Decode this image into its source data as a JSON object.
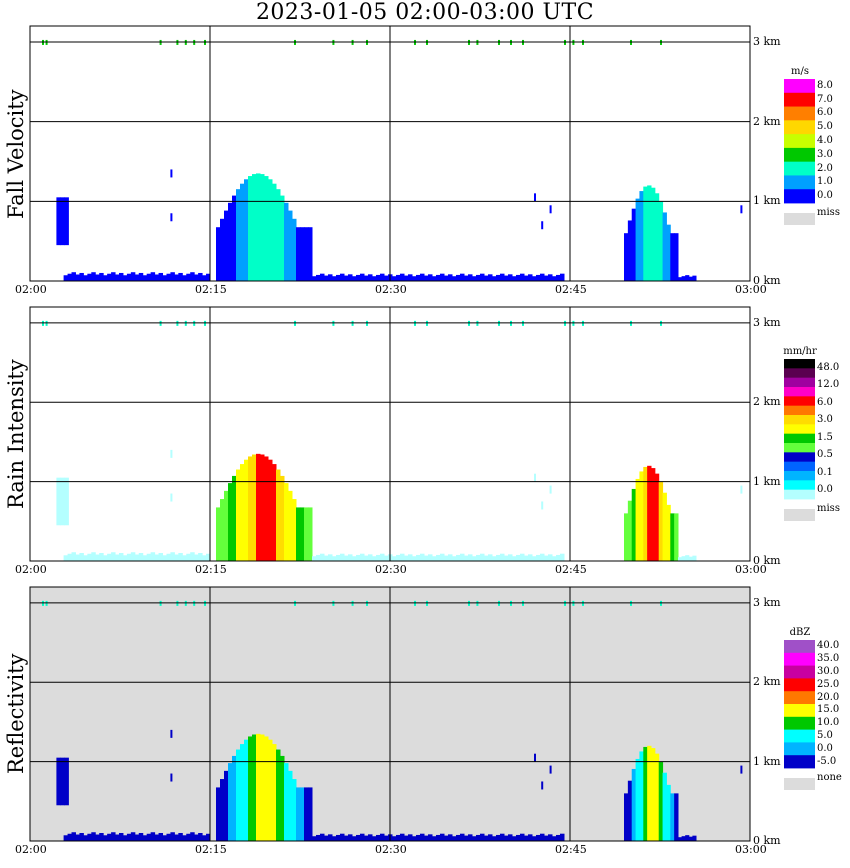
{
  "figure": {
    "title": "2023-01-05   02:00-03:00 UTC"
  },
  "chart_data": [
    {
      "type": "heatmap",
      "title": "Fall Velocity",
      "ylabel": "Fall Velocity",
      "x_ticks": [
        "02:00",
        "02:15",
        "02:30",
        "02:45",
        "03:00"
      ],
      "y_ticks": [
        "0 km",
        "1 km",
        "2 km",
        "3 km"
      ],
      "ylim_km": [
        0,
        3.2
      ],
      "xlim_min": [
        0,
        60
      ],
      "grid": true,
      "background": "#ffffff",
      "colorbar": {
        "unit": "m/s",
        "labels": [
          "8.0",
          "7.0",
          "6.0",
          "5.0",
          "4.0",
          "3.0",
          "2.0",
          "1.0",
          "0.0"
        ],
        "colors": [
          "#ff00ff",
          "#ff0000",
          "#ff7f00",
          "#ffd700",
          "#c8ff00",
          "#00c800",
          "#00ffc8",
          "#00a0ff",
          "#0000ff"
        ],
        "missing_label": "miss",
        "missing_color": "#dcdcdc"
      }
    },
    {
      "type": "heatmap",
      "title": "Rain Intensity",
      "ylabel": "Rain Intensity",
      "x_ticks": [
        "02:00",
        "02:15",
        "02:30",
        "02:45",
        "03:00"
      ],
      "y_ticks": [
        "0 km",
        "1 km",
        "2 km",
        "3 km"
      ],
      "ylim_km": [
        0,
        3.2
      ],
      "xlim_min": [
        0,
        60
      ],
      "grid": true,
      "background": "#ffffff",
      "colorbar": {
        "unit": "mm/hr",
        "labels": [
          "48.0",
          "12.0",
          "6.0",
          "3.0",
          "1.5",
          "0.5",
          "0.1",
          "0.0"
        ],
        "colors": [
          "#000000",
          "#5a0050",
          "#a000a0",
          "#ff00c8",
          "#ff0000",
          "#ff7800",
          "#ffdc00",
          "#ffff00",
          "#00c800",
          "#64ff3c",
          "#0000c8",
          "#0064ff",
          "#00b4ff",
          "#00ffff",
          "#b4ffff"
        ],
        "missing_label": "miss",
        "missing_color": "#dcdcdc"
      }
    },
    {
      "type": "heatmap",
      "title": "Reflectivity",
      "ylabel": "Reflectivity",
      "x_ticks": [
        "02:00",
        "02:15",
        "02:30",
        "02:45",
        "03:00"
      ],
      "y_ticks": [
        "0 km",
        "1 km",
        "2 km",
        "3 km"
      ],
      "ylim_km": [
        0,
        3.2
      ],
      "xlim_min": [
        0,
        60
      ],
      "grid": true,
      "background": "#dcdcdc",
      "colorbar": {
        "unit": "dBZ",
        "labels": [
          "40.0",
          "35.0",
          "30.0",
          "25.0",
          "20.0",
          "15.0",
          "10.0",
          "5.0",
          "0.0",
          "-5.0"
        ],
        "colors": [
          "#a050c8",
          "#ff00ff",
          "#c800a0",
          "#ff0000",
          "#ff7800",
          "#ffff00",
          "#00c800",
          "#00ffff",
          "#00b4ff",
          "#0000c8"
        ],
        "missing_label": "none",
        "missing_color": "#dcdcdc"
      }
    }
  ]
}
